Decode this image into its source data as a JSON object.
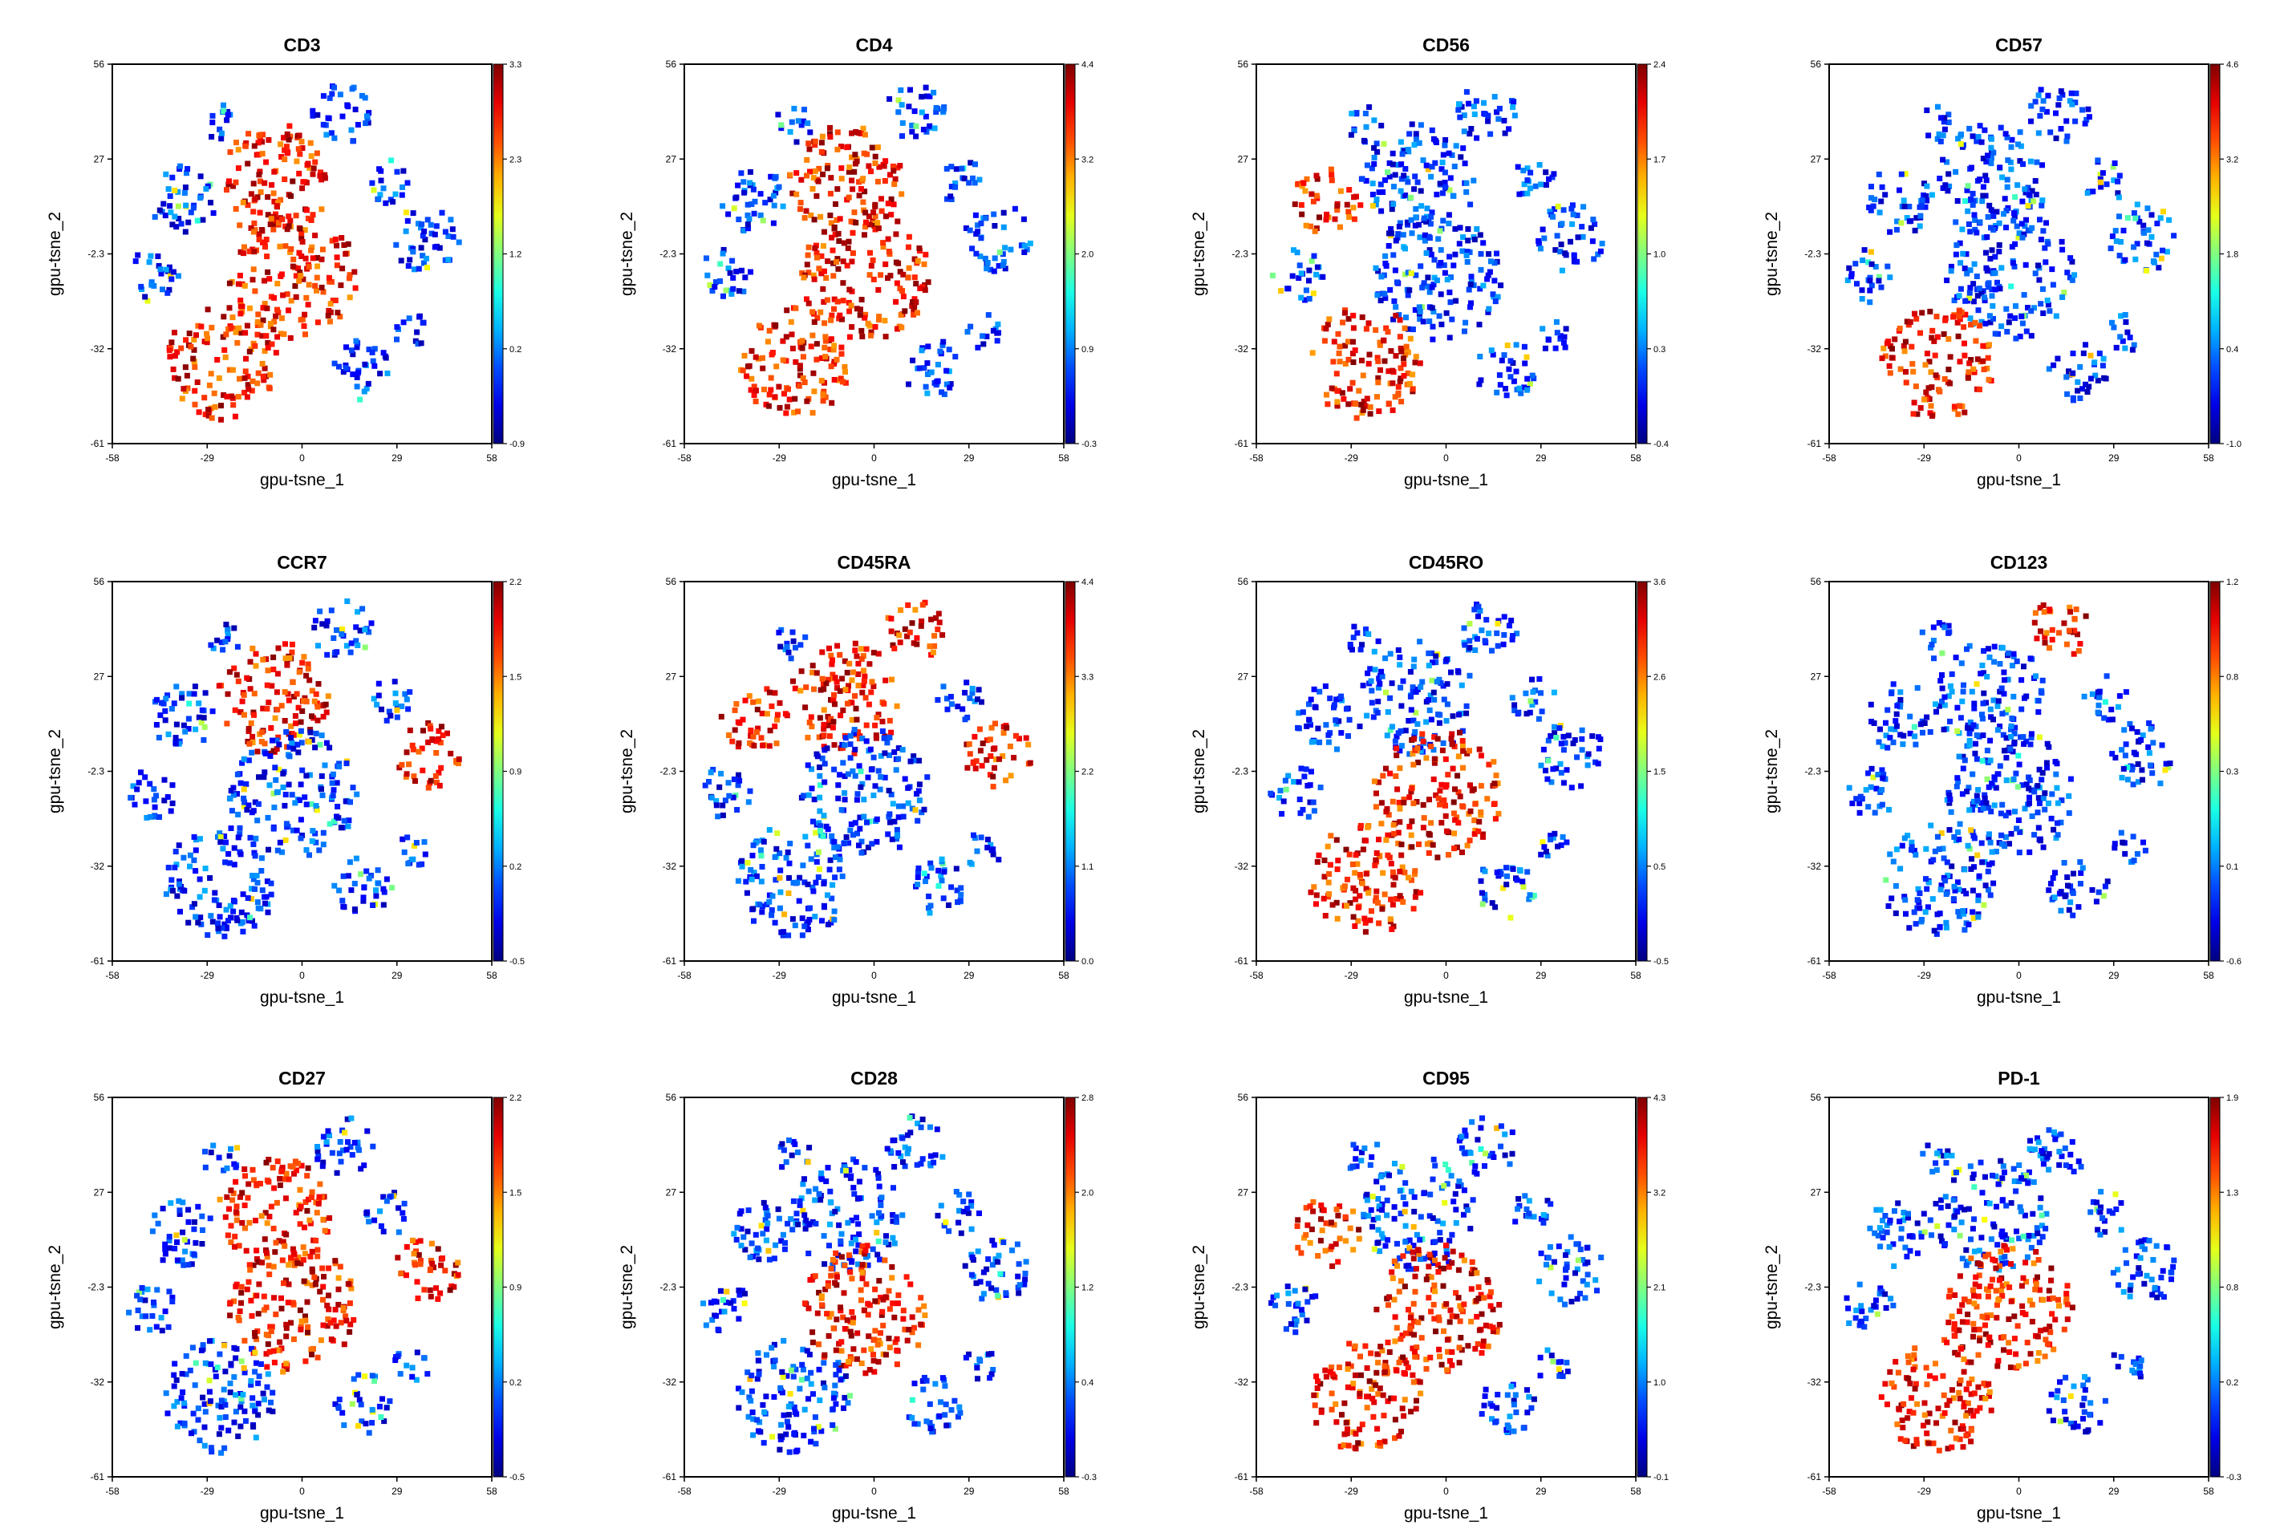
{
  "chart_data": [
    {
      "type": "heatmap",
      "title": "CD3",
      "xlabel": "gpu-tsne_1",
      "ylabel": "gpu-tsne_2",
      "x_ticks": [
        "-58",
        "-29",
        "0",
        "29",
        "58"
      ],
      "y_ticks": [
        "56",
        "27",
        "-2.3",
        "-32",
        "-61"
      ],
      "colorbar_ticks": [
        "3.3",
        "2.3",
        "1.2",
        "0.2",
        "-0.9"
      ],
      "colorscale": "jet",
      "high_regions": [
        "center-top",
        "center",
        "bottom-left"
      ]
    },
    {
      "type": "heatmap",
      "title": "CD4",
      "xlabel": "gpu-tsne_1",
      "ylabel": "gpu-tsne_2",
      "x_ticks": [
        "-58",
        "-29",
        "0",
        "29",
        "58"
      ],
      "y_ticks": [
        "56",
        "27",
        "-2.3",
        "-32",
        "-61"
      ],
      "colorbar_ticks": [
        "4.4",
        "3.2",
        "2.0",
        "0.9",
        "-0.3"
      ],
      "colorscale": "jet",
      "high_regions": [
        "center-top",
        "center",
        "bottom-left"
      ]
    },
    {
      "type": "heatmap",
      "title": "CD56",
      "xlabel": "gpu-tsne_1",
      "ylabel": "gpu-tsne_2",
      "x_ticks": [
        "-58",
        "-29",
        "0",
        "29",
        "58"
      ],
      "y_ticks": [
        "56",
        "27",
        "-2.3",
        "-32",
        "-61"
      ],
      "colorbar_ticks": [
        "2.4",
        "1.7",
        "1.0",
        "0.3",
        "-0.4"
      ],
      "colorscale": "jet",
      "high_regions": [
        "left",
        "bottom-left"
      ]
    },
    {
      "type": "heatmap",
      "title": "CD57",
      "xlabel": "gpu-tsne_1",
      "ylabel": "gpu-tsne_2",
      "x_ticks": [
        "-58",
        "-29",
        "0",
        "29",
        "58"
      ],
      "y_ticks": [
        "56",
        "27",
        "-2.3",
        "-32",
        "-61"
      ],
      "colorbar_ticks": [
        "4.6",
        "3.2",
        "1.8",
        "0.4",
        "-1.0"
      ],
      "colorscale": "jet",
      "high_regions": [
        "bottom-left"
      ]
    },
    {
      "type": "heatmap",
      "title": "CCR7",
      "xlabel": "gpu-tsne_1",
      "ylabel": "gpu-tsne_2",
      "x_ticks": [
        "-58",
        "-29",
        "0",
        "29",
        "58"
      ],
      "y_ticks": [
        "56",
        "27",
        "-2.3",
        "-32",
        "-61"
      ],
      "colorbar_ticks": [
        "2.2",
        "1.5",
        "0.9",
        "0.2",
        "-0.5"
      ],
      "colorscale": "jet",
      "high_regions": [
        "center-top",
        "right"
      ]
    },
    {
      "type": "heatmap",
      "title": "CD45RA",
      "xlabel": "gpu-tsne_1",
      "ylabel": "gpu-tsne_2",
      "x_ticks": [
        "-58",
        "-29",
        "0",
        "29",
        "58"
      ],
      "y_ticks": [
        "56",
        "27",
        "-2.3",
        "-32",
        "-61"
      ],
      "colorbar_ticks": [
        "4.4",
        "3.3",
        "2.2",
        "1.1",
        "0.0"
      ],
      "colorscale": "jet",
      "high_regions": [
        "center-top",
        "top-right",
        "right",
        "left"
      ]
    },
    {
      "type": "heatmap",
      "title": "CD45RO",
      "xlabel": "gpu-tsne_1",
      "ylabel": "gpu-tsne_2",
      "x_ticks": [
        "-58",
        "-29",
        "0",
        "29",
        "58"
      ],
      "y_ticks": [
        "56",
        "27",
        "-2.3",
        "-32",
        "-61"
      ],
      "colorbar_ticks": [
        "3.6",
        "2.6",
        "1.5",
        "0.5",
        "-0.5"
      ],
      "colorscale": "jet",
      "high_regions": [
        "center",
        "bottom-left"
      ]
    },
    {
      "type": "heatmap",
      "title": "CD123",
      "xlabel": "gpu-tsne_1",
      "ylabel": "gpu-tsne_2",
      "x_ticks": [
        "-58",
        "-29",
        "0",
        "29",
        "58"
      ],
      "y_ticks": [
        "56",
        "27",
        "-2.3",
        "-32",
        "-61"
      ],
      "colorbar_ticks": [
        "1.2",
        "0.8",
        "0.3",
        "0.1",
        "-0.6"
      ],
      "colorscale": "jet",
      "high_regions": [
        "top-right"
      ]
    },
    {
      "type": "heatmap",
      "title": "CD27",
      "xlabel": "gpu-tsne_1",
      "ylabel": "gpu-tsne_2",
      "x_ticks": [
        "-58",
        "-29",
        "0",
        "29",
        "58"
      ],
      "y_ticks": [
        "56",
        "27",
        "-2.3",
        "-32",
        "-61"
      ],
      "colorbar_ticks": [
        "2.2",
        "1.5",
        "0.9",
        "0.2",
        "-0.5"
      ],
      "colorscale": "jet",
      "high_regions": [
        "center-top",
        "center",
        "right"
      ]
    },
    {
      "type": "heatmap",
      "title": "CD28",
      "xlabel": "gpu-tsne_1",
      "ylabel": "gpu-tsne_2",
      "x_ticks": [
        "-58",
        "-29",
        "0",
        "29",
        "58"
      ],
      "y_ticks": [
        "56",
        "27",
        "-2.3",
        "-32",
        "-61"
      ],
      "colorbar_ticks": [
        "2.8",
        "2.0",
        "1.2",
        "0.4",
        "-0.3"
      ],
      "colorscale": "jet",
      "high_regions": [
        "center"
      ]
    },
    {
      "type": "heatmap",
      "title": "CD95",
      "xlabel": "gpu-tsne_1",
      "ylabel": "gpu-tsne_2",
      "x_ticks": [
        "-58",
        "-29",
        "0",
        "29",
        "58"
      ],
      "y_ticks": [
        "56",
        "27",
        "-2.3",
        "-32",
        "-61"
      ],
      "colorbar_ticks": [
        "4.3",
        "3.2",
        "2.1",
        "1.0",
        "-0.1"
      ],
      "colorscale": "jet",
      "high_regions": [
        "left",
        "center",
        "bottom-left"
      ]
    },
    {
      "type": "heatmap",
      "title": "PD-1",
      "xlabel": "gpu-tsne_1",
      "ylabel": "gpu-tsne_2",
      "x_ticks": [
        "-58",
        "-29",
        "0",
        "29",
        "58"
      ],
      "y_ticks": [
        "56",
        "27",
        "-2.3",
        "-32",
        "-61"
      ],
      "colorbar_ticks": [
        "1.9",
        "1.3",
        "0.8",
        "0.2",
        "-0.3"
      ],
      "colorscale": "jet",
      "high_regions": [
        "center",
        "bottom-left"
      ]
    }
  ]
}
